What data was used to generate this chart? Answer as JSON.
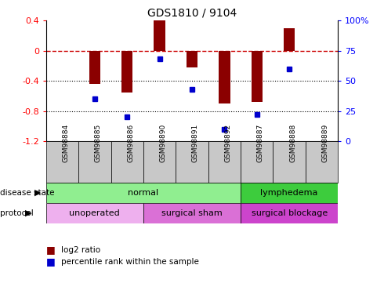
{
  "title": "GDS1810 / 9104",
  "samples": [
    "GSM98884",
    "GSM98885",
    "GSM98886",
    "GSM98890",
    "GSM98891",
    "GSM98892",
    "GSM98887",
    "GSM98888",
    "GSM98889"
  ],
  "log2_ratio": [
    0.0,
    -0.44,
    -0.55,
    0.4,
    -0.22,
    -0.7,
    -0.68,
    0.3,
    0.0
  ],
  "percentile_rank": [
    null,
    35,
    20,
    68,
    43,
    10,
    22,
    60,
    null
  ],
  "ylim_left": [
    -1.2,
    0.4
  ],
  "ylim_right": [
    0,
    100
  ],
  "right_ticks": [
    0,
    25,
    50,
    75,
    100
  ],
  "right_tick_labels": [
    "0",
    "25",
    "50",
    "75",
    "100%"
  ],
  "left_ticks": [
    -1.2,
    -0.8,
    -0.4,
    0.0,
    0.4
  ],
  "left_tick_labels": [
    "-1.2",
    "-0.8",
    "-0.4",
    "0",
    "0.4"
  ],
  "disease_state": [
    {
      "label": "normal",
      "start": 0,
      "end": 6,
      "color": "#90EE90"
    },
    {
      "label": "lymphedema",
      "start": 6,
      "end": 9,
      "color": "#3DCC3D"
    }
  ],
  "protocol": [
    {
      "label": "unoperated",
      "start": 0,
      "end": 3,
      "color": "#EEB0EE"
    },
    {
      "label": "surgical sham",
      "start": 3,
      "end": 6,
      "color": "#DA70D6"
    },
    {
      "label": "surgical blockage",
      "start": 6,
      "end": 9,
      "color": "#CC44CC"
    }
  ],
  "bar_color": "#8B0000",
  "dot_color": "#0000CD",
  "zero_line_color": "#CC0000",
  "dot_line_color": "#0000BB",
  "grid_color": "#000000",
  "bg_color": "#FFFFFF",
  "tick_box_color": "#C8C8C8",
  "figsize": [
    4.9,
    3.75
  ],
  "dpi": 100
}
